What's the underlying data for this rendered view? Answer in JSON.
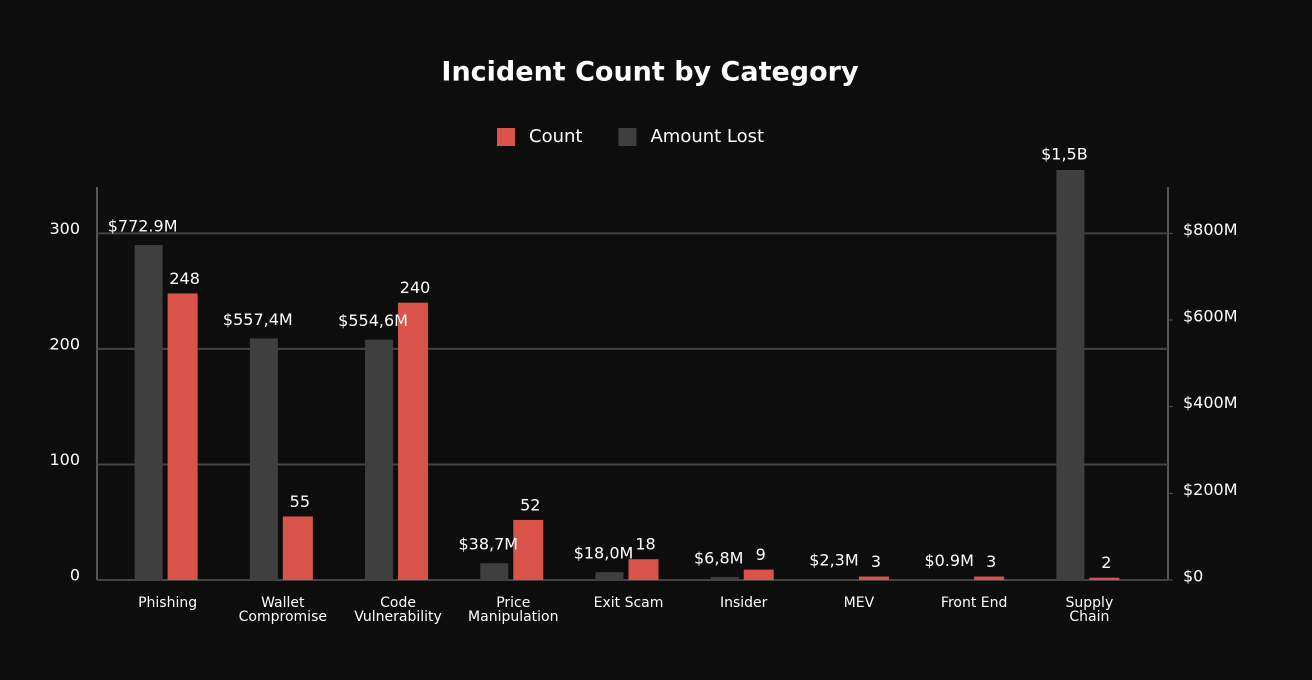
{
  "chart_data": {
    "type": "bar",
    "title": "Incident Count by Category",
    "categories": [
      "Phishing",
      "Wallet\nCompromise",
      "Code\nVulnerability",
      "Price\nManipulation",
      "Exit Scam",
      "Insider",
      "MEV",
      "Front End",
      "Supply\nChain"
    ],
    "series": [
      {
        "name": "Count",
        "color": "#d9534a",
        "values": [
          248,
          55,
          240,
          52,
          18,
          9,
          3,
          3,
          2
        ]
      },
      {
        "name": "Amount Lost",
        "color": "#3f3f3f",
        "axis": "y2",
        "values": [
          772900000,
          557400000,
          554600000,
          38700000,
          18000000,
          6800000,
          2300000,
          900000,
          1500000000
        ],
        "value_labels": [
          "$772.9M",
          "$557,4M",
          "$554,6M",
          "$38,7M",
          "$18,0M",
          "$6,8M",
          "$2,3M",
          "$0.9M",
          "$1,5B"
        ]
      }
    ],
    "ylim": [
      0,
      337.5
    ],
    "yticks": [
      0,
      100,
      200,
      300
    ],
    "y2lim": [
      0,
      900000000
    ],
    "y2ticks": [
      {
        "value": 0,
        "label": "$0"
      },
      {
        "value": 200000000,
        "label": "$200M"
      },
      {
        "value": 400000000,
        "label": "$400M"
      },
      {
        "value": 600000000,
        "label": "$600M"
      },
      {
        "value": 800000000,
        "label": "$800M"
      }
    ],
    "grid": true,
    "legend": "top"
  }
}
